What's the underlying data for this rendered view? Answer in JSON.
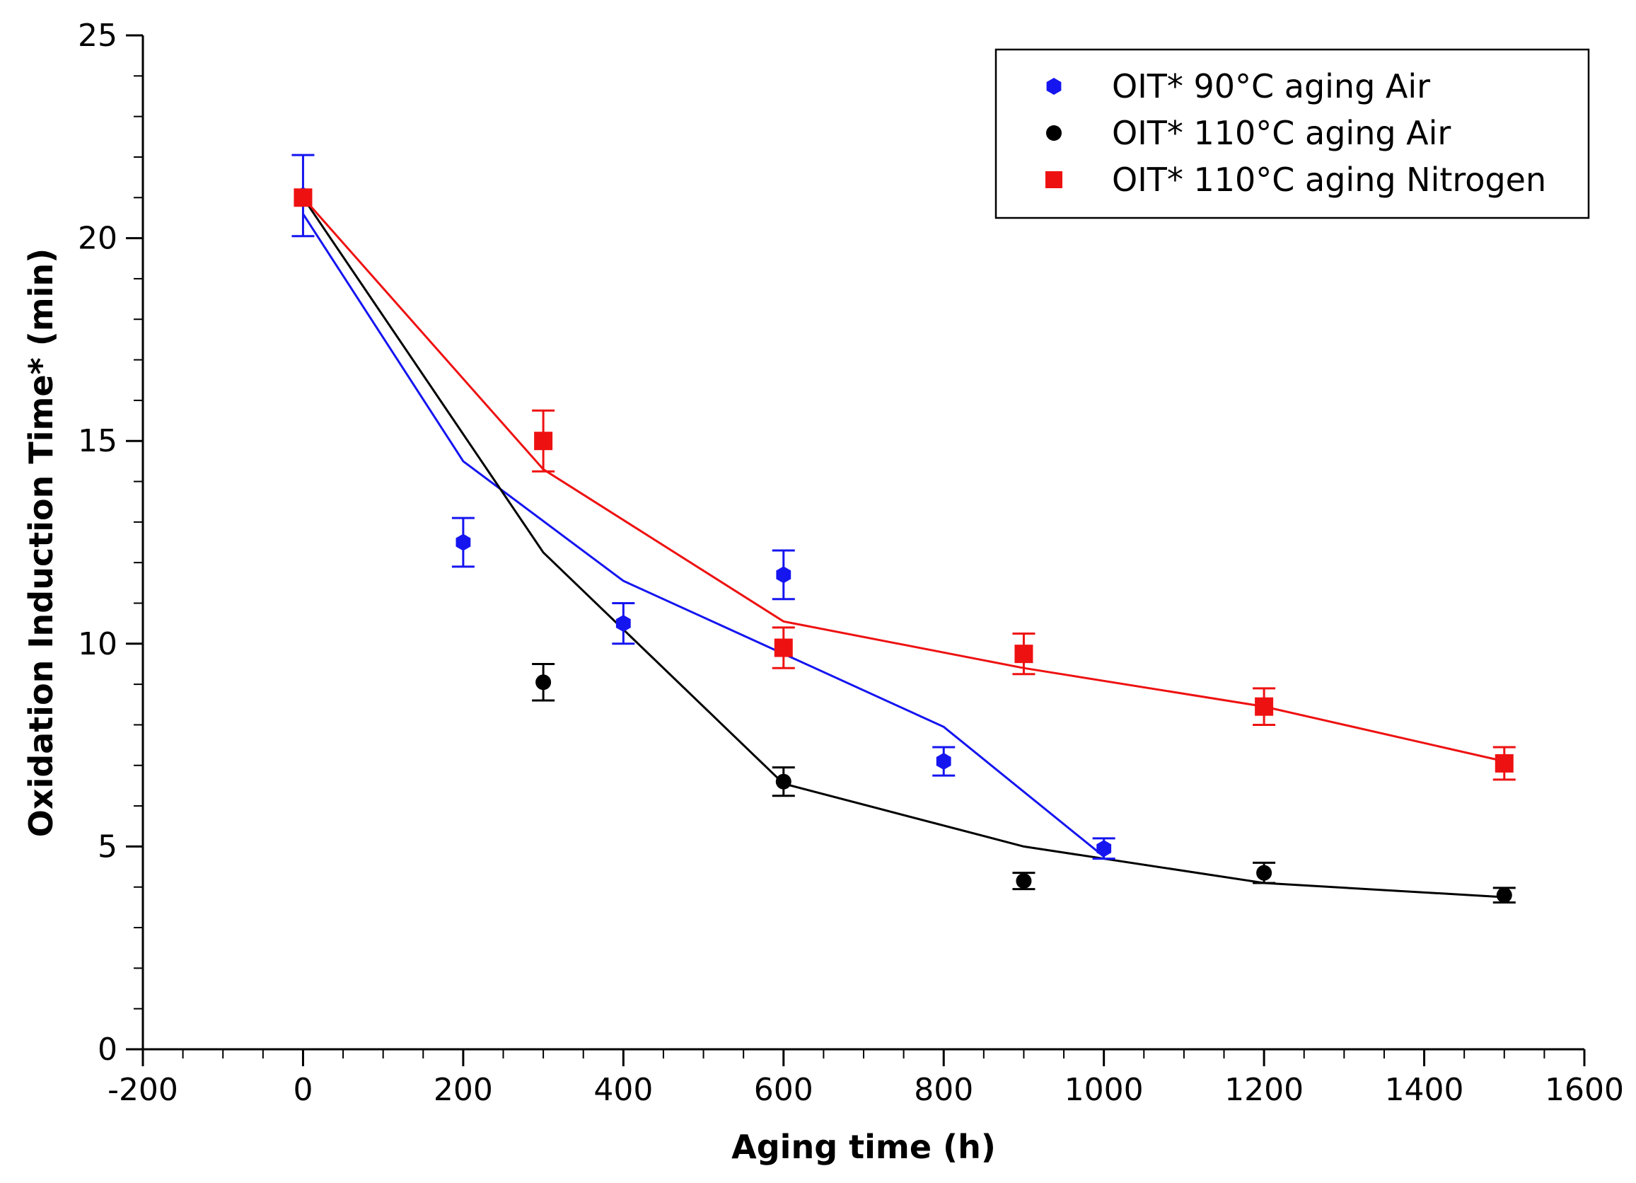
{
  "chart_data": {
    "type": "scatter",
    "title": "",
    "xlabel": "Aging time (h)",
    "ylabel": "Oxidation Induction Time* (min)",
    "xlim": [
      -200,
      1600
    ],
    "ylim": [
      0,
      25
    ],
    "x_ticks": [
      -200,
      0,
      200,
      400,
      600,
      800,
      1000,
      1200,
      1400,
      1600
    ],
    "x_tick_labels": [
      "-200",
      "0",
      "200",
      "400",
      "600",
      "800",
      "1000",
      "1200",
      "1400",
      "1600"
    ],
    "y_ticks": [
      0,
      5,
      10,
      15,
      20,
      25
    ],
    "y_tick_labels": [
      "0",
      "5",
      "10",
      "15",
      "20",
      "25"
    ],
    "grid": false,
    "legend_position": "top-right",
    "series": [
      {
        "name": "OIT* 90°C aging Air",
        "color": "#1515f0",
        "marker": "hexagon",
        "points": [
          {
            "x": 0,
            "y": 21.05,
            "err": 1.0
          },
          {
            "x": 200,
            "y": 12.5,
            "err": 0.6
          },
          {
            "x": 400,
            "y": 10.5,
            "err": 0.5
          },
          {
            "x": 600,
            "y": 11.7,
            "err": 0.6
          },
          {
            "x": 800,
            "y": 7.1,
            "err": 0.35
          },
          {
            "x": 1000,
            "y": 4.95,
            "err": 0.25
          }
        ],
        "fit": [
          {
            "x": 0,
            "y": 20.6
          },
          {
            "x": 200,
            "y": 14.5
          },
          {
            "x": 400,
            "y": 11.55
          },
          {
            "x": 600,
            "y": 9.75
          },
          {
            "x": 800,
            "y": 7.95
          },
          {
            "x": 1000,
            "y": 4.75
          }
        ]
      },
      {
        "name": "OIT* 110°C aging Air",
        "color": "#000000",
        "marker": "circle",
        "points": [
          {
            "x": 300,
            "y": 9.05,
            "err": 0.45
          },
          {
            "x": 600,
            "y": 6.6,
            "err": 0.35
          },
          {
            "x": 900,
            "y": 4.15,
            "err": 0.2
          },
          {
            "x": 1200,
            "y": 4.35,
            "err": 0.25
          },
          {
            "x": 1500,
            "y": 3.8,
            "err": 0.18
          }
        ],
        "fit": [
          {
            "x": 0,
            "y": 21.0
          },
          {
            "x": 300,
            "y": 12.25
          },
          {
            "x": 400,
            "y": 10.35
          },
          {
            "x": 600,
            "y": 6.55
          },
          {
            "x": 900,
            "y": 5.0
          },
          {
            "x": 1200,
            "y": 4.1
          },
          {
            "x": 1500,
            "y": 3.75
          }
        ]
      },
      {
        "name": "OIT* 110°C aging Nitrogen",
        "color": "#ee1111",
        "marker": "square",
        "points": [
          {
            "x": 0,
            "y": 21.0,
            "err": 0.0
          },
          {
            "x": 300,
            "y": 15.0,
            "err": 0.75
          },
          {
            "x": 600,
            "y": 9.9,
            "err": 0.5
          },
          {
            "x": 900,
            "y": 9.75,
            "err": 0.5
          },
          {
            "x": 1200,
            "y": 8.45,
            "err": 0.45
          },
          {
            "x": 1500,
            "y": 7.05,
            "err": 0.4
          }
        ],
        "fit": [
          {
            "x": 0,
            "y": 21.0
          },
          {
            "x": 300,
            "y": 14.3
          },
          {
            "x": 600,
            "y": 10.55
          },
          {
            "x": 900,
            "y": 9.4
          },
          {
            "x": 1200,
            "y": 8.45
          },
          {
            "x": 1500,
            "y": 7.1
          }
        ]
      }
    ]
  }
}
